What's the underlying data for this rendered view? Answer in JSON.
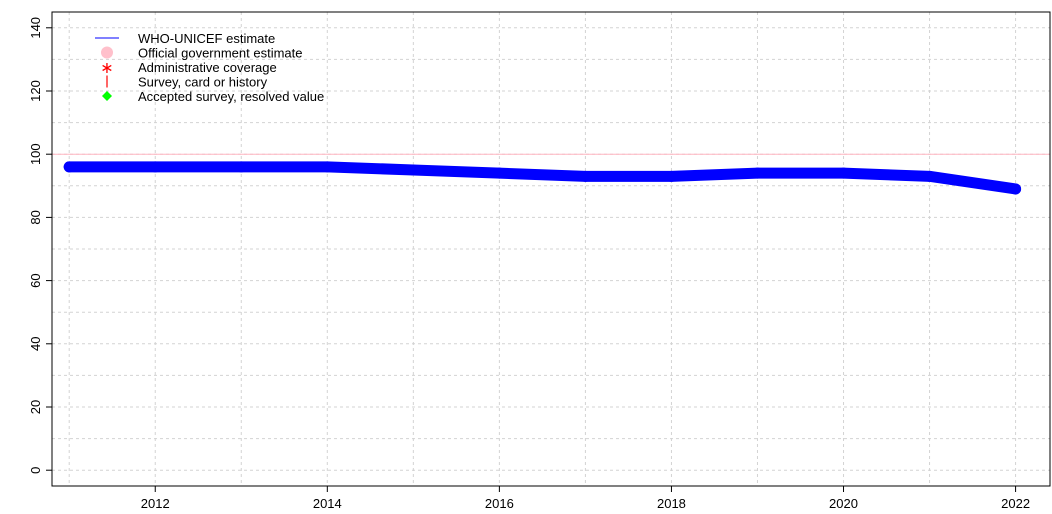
{
  "chart_data": {
    "type": "line",
    "x": [
      2011,
      2012,
      2013,
      2014,
      2015,
      2016,
      2017,
      2018,
      2019,
      2020,
      2021,
      2022
    ],
    "series": [
      {
        "name": "WHO-UNICEF estimate",
        "color": "#0000ff",
        "values": [
          96,
          96,
          96,
          96,
          95,
          94,
          93,
          93,
          94,
          94,
          93,
          89
        ]
      }
    ],
    "reference_line": {
      "y": 100,
      "color": "#ffb6c1"
    },
    "xlim": [
      2010.8,
      2022.4
    ],
    "ylim": [
      -5,
      145
    ],
    "x_ticks": [
      2012,
      2014,
      2016,
      2018,
      2020,
      2022
    ],
    "y_ticks": [
      0,
      20,
      40,
      60,
      80,
      100,
      120,
      140
    ],
    "y_minor_grid": [
      10,
      30,
      50,
      70,
      90,
      110,
      130
    ],
    "grid": true,
    "legend_position": "top-left",
    "legend": [
      {
        "label": "WHO-UNICEF estimate",
        "symbol": "line",
        "color": "#0000ff"
      },
      {
        "label": "Official government estimate",
        "symbol": "circle",
        "color": "#ffc0cb"
      },
      {
        "label": "Administrative coverage",
        "symbol": "asterisk",
        "color": "#ff0000"
      },
      {
        "label": "Survey, card or history",
        "symbol": "bar",
        "color": "#ff0000"
      },
      {
        "label": "Accepted survey, resolved value",
        "symbol": "diamond",
        "color": "#00ff00"
      }
    ],
    "title": "",
    "xlabel": "",
    "ylabel": ""
  }
}
